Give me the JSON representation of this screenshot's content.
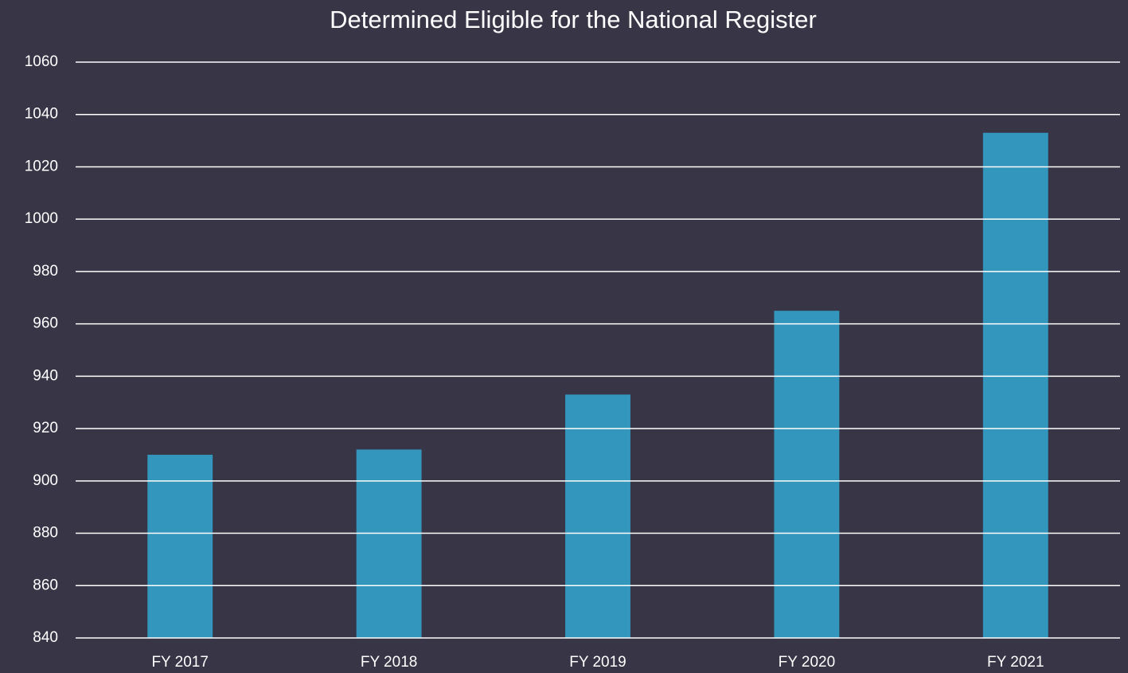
{
  "chart_data": {
    "type": "bar",
    "title": "Determined Eligible for the National Register",
    "categories": [
      "FY 2017",
      "FY 2018",
      "FY 2019",
      "FY 2020",
      "FY 2021"
    ],
    "values": [
      910,
      912,
      933,
      965,
      1033
    ],
    "color": "#3396bd",
    "ylim": [
      840,
      1060
    ],
    "yticks": [
      840,
      860,
      880,
      900,
      920,
      940,
      960,
      980,
      1000,
      1020,
      1040,
      1060
    ],
    "grid": true
  }
}
